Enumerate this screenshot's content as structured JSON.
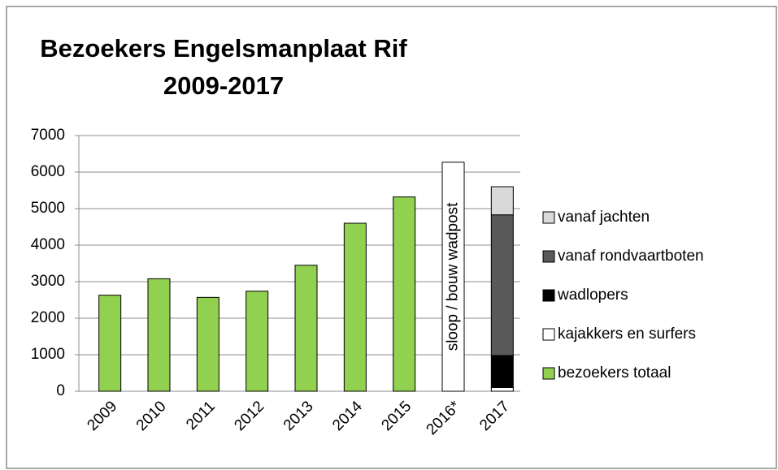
{
  "chart_data": {
    "type": "stacked_bar",
    "title": [
      "Bezoekers Engelsmanplaat Rif",
      "2009-2017"
    ],
    "categories": [
      "2009",
      "2010",
      "2011",
      "2012",
      "2013",
      "2014",
      "2015",
      "2016*",
      "2017"
    ],
    "series": [
      {
        "name": "bezoekers totaal",
        "color": "#92d050",
        "values": [
          2630,
          3080,
          2570,
          2740,
          3450,
          4600,
          5320,
          null,
          null
        ]
      },
      {
        "name": "kajakkers en surfers",
        "color": "#ffffff",
        "values": [
          null,
          null,
          null,
          null,
          null,
          null,
          null,
          null,
          100
        ]
      },
      {
        "name": "wadlopers",
        "color": "#000000",
        "values": [
          null,
          null,
          null,
          null,
          null,
          null,
          null,
          null,
          880
        ]
      },
      {
        "name": "vanaf rondvaartboten",
        "color": "#595959",
        "values": [
          null,
          null,
          null,
          null,
          null,
          null,
          null,
          null,
          3850
        ]
      },
      {
        "name": "vanaf jachten",
        "color": "#d9d9d9",
        "values": [
          null,
          null,
          null,
          null,
          null,
          null,
          null,
          null,
          770
        ]
      }
    ],
    "annotation": {
      "text": "sloop / bouw wadpost",
      "category": 7,
      "value": 6270
    },
    "ylim": [
      0,
      7000
    ],
    "yticks": [
      0,
      1000,
      2000,
      3000,
      4000,
      5000,
      6000,
      7000
    ],
    "grid": true,
    "legend": "right"
  }
}
